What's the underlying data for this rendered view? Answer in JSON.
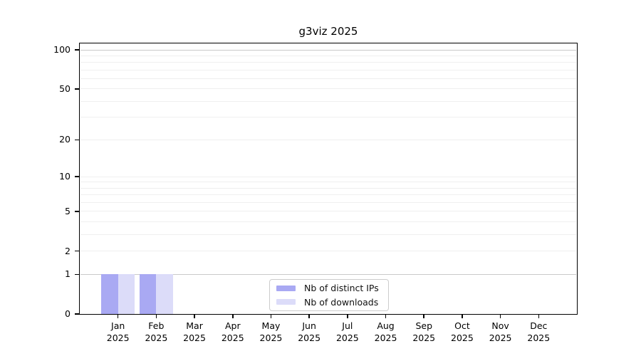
{
  "chart": {
    "title": "g3viz 2025"
  },
  "legend": {
    "items": [
      {
        "label": "Nb of distinct IPs"
      },
      {
        "label": "Nb of downloads"
      }
    ]
  },
  "y_axis": {
    "ticks": [
      {
        "label": "100",
        "value": 100
      },
      {
        "label": "50",
        "value": 50
      },
      {
        "label": "20",
        "value": 20
      },
      {
        "label": "10",
        "value": 10
      },
      {
        "label": "5",
        "value": 5
      },
      {
        "label": "2",
        "value": 2
      },
      {
        "label": "1",
        "value": 1
      },
      {
        "label": "0",
        "value": 0
      }
    ]
  },
  "x_axis": {
    "months": [
      "Jan",
      "Feb",
      "Mar",
      "Apr",
      "May",
      "Jun",
      "Jul",
      "Aug",
      "Sep",
      "Oct",
      "Nov",
      "Dec"
    ],
    "year": "2025"
  },
  "chart_data": {
    "type": "bar",
    "title": "g3viz 2025",
    "categories": [
      "Jan 2025",
      "Feb 2025",
      "Mar 2025",
      "Apr 2025",
      "May 2025",
      "Jun 2025",
      "Jul 2025",
      "Aug 2025",
      "Sep 2025",
      "Oct 2025",
      "Nov 2025",
      "Dec 2025"
    ],
    "series": [
      {
        "name": "Nb of distinct IPs",
        "color": "#a9a9f3",
        "values": [
          1,
          1,
          0,
          0,
          0,
          0,
          0,
          0,
          0,
          0,
          0,
          0
        ]
      },
      {
        "name": "Nb of downloads",
        "color": "#dcdcf9",
        "values": [
          1,
          1,
          0,
          0,
          0,
          0,
          0,
          0,
          0,
          0,
          0,
          0
        ]
      }
    ],
    "xlabel": "",
    "ylabel": "",
    "y_scale": "log1p",
    "y_ticks": [
      0,
      1,
      2,
      5,
      10,
      20,
      50,
      100
    ],
    "ylim": [
      0,
      105
    ],
    "grid": true,
    "legend_position": "lower-center-inside"
  }
}
